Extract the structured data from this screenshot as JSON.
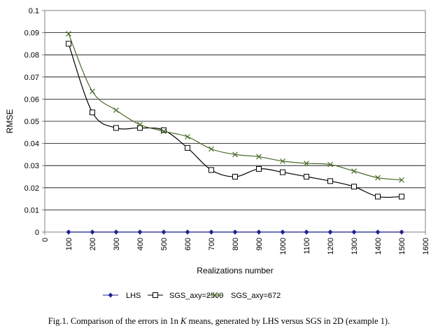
{
  "chart_data": {
    "type": "line",
    "title": "",
    "xlabel": "Realizations number",
    "ylabel": "RMSE",
    "xlim": [
      0,
      1600
    ],
    "ylim": [
      0,
      0.1
    ],
    "x_ticks": [
      "0",
      "100",
      "200",
      "300",
      "400",
      "500",
      "600",
      "700",
      "800",
      "900",
      "1000",
      "1100",
      "1200",
      "1300",
      "1400",
      "1500",
      "1600"
    ],
    "y_ticks": [
      "0",
      "0.01",
      "0.02",
      "0.03",
      "0.04",
      "0.05",
      "0.06",
      "0.07",
      "0.08",
      "0.09",
      "0.1"
    ],
    "x": [
      100,
      200,
      300,
      400,
      500,
      600,
      700,
      800,
      900,
      1000,
      1100,
      1200,
      1300,
      1400,
      1500
    ],
    "series": [
      {
        "name": "LHS",
        "marker": "diamond",
        "color": "#1f1f8f",
        "values": [
          0,
          0,
          0,
          0,
          0,
          0,
          0,
          0,
          0,
          0,
          0,
          0,
          0,
          0,
          0
        ]
      },
      {
        "name": "SGS_axy=2500",
        "marker": "square",
        "color": "#000000",
        "values": [
          0.085,
          0.054,
          0.047,
          0.047,
          0.046,
          0.038,
          0.028,
          0.025,
          0.0285,
          0.027,
          0.025,
          0.023,
          0.0205,
          0.016,
          0.016
        ]
      },
      {
        "name": "SGS_axy=672",
        "marker": "x",
        "color": "#4a6b2a",
        "values": [
          0.0895,
          0.0635,
          0.055,
          0.0485,
          0.0455,
          0.043,
          0.0375,
          0.035,
          0.034,
          0.032,
          0.031,
          0.0305,
          0.0275,
          0.0245,
          0.0235
        ]
      }
    ],
    "legend_position": "bottom"
  },
  "caption": {
    "prefix": "Fig.1. Comparison of the errors in 1n ",
    "italic": "K",
    "suffix": " means, generated by LHS versus SGS in 2D (example 1)."
  }
}
